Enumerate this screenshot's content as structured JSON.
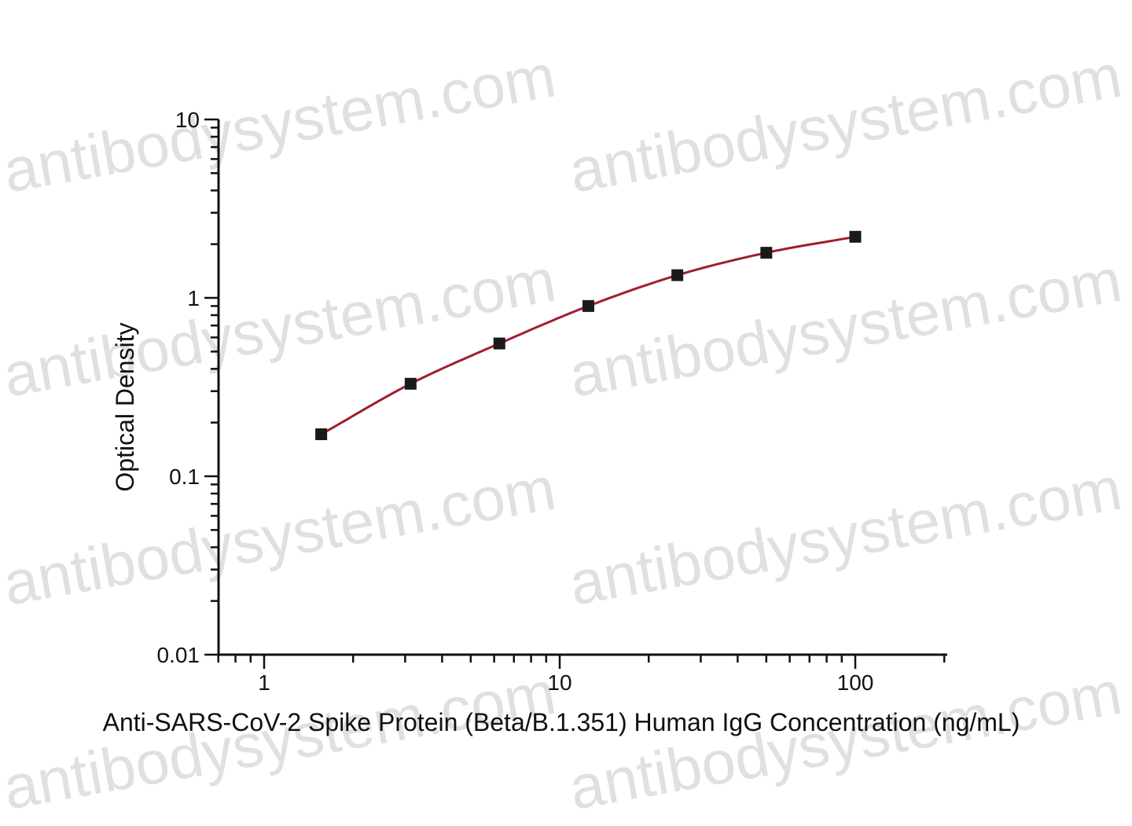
{
  "chart_data": {
    "type": "scatter",
    "title": "",
    "xlabel": "Anti-SARS-CoV-2 Spike Protein (Beta/B.1.351) Human IgG Concentration (ng/mL)",
    "ylabel": "Optical Density",
    "xscale": "log",
    "yscale": "log",
    "xlim": [
      0.7,
      200
    ],
    "ylim": [
      0.01,
      10
    ],
    "x_ticks": [
      1,
      10,
      100
    ],
    "x_tick_labels": [
      "1",
      "10",
      "100"
    ],
    "y_ticks": [
      0.01,
      0.1,
      1,
      10
    ],
    "y_tick_labels": [
      "0.01",
      "0.1",
      "1",
      "10"
    ],
    "grid": false,
    "legend": "none",
    "series": [
      {
        "x": [
          1.56,
          3.13,
          6.25,
          12.5,
          25,
          50,
          100
        ],
        "y": [
          0.172,
          0.33,
          0.555,
          0.9,
          1.34,
          1.79,
          2.2
        ],
        "marker": "square",
        "marker_color": "#1a1a1a",
        "fit_line": true,
        "line_color": "#a01e2e"
      }
    ],
    "watermark": "antibodysystem.com"
  }
}
